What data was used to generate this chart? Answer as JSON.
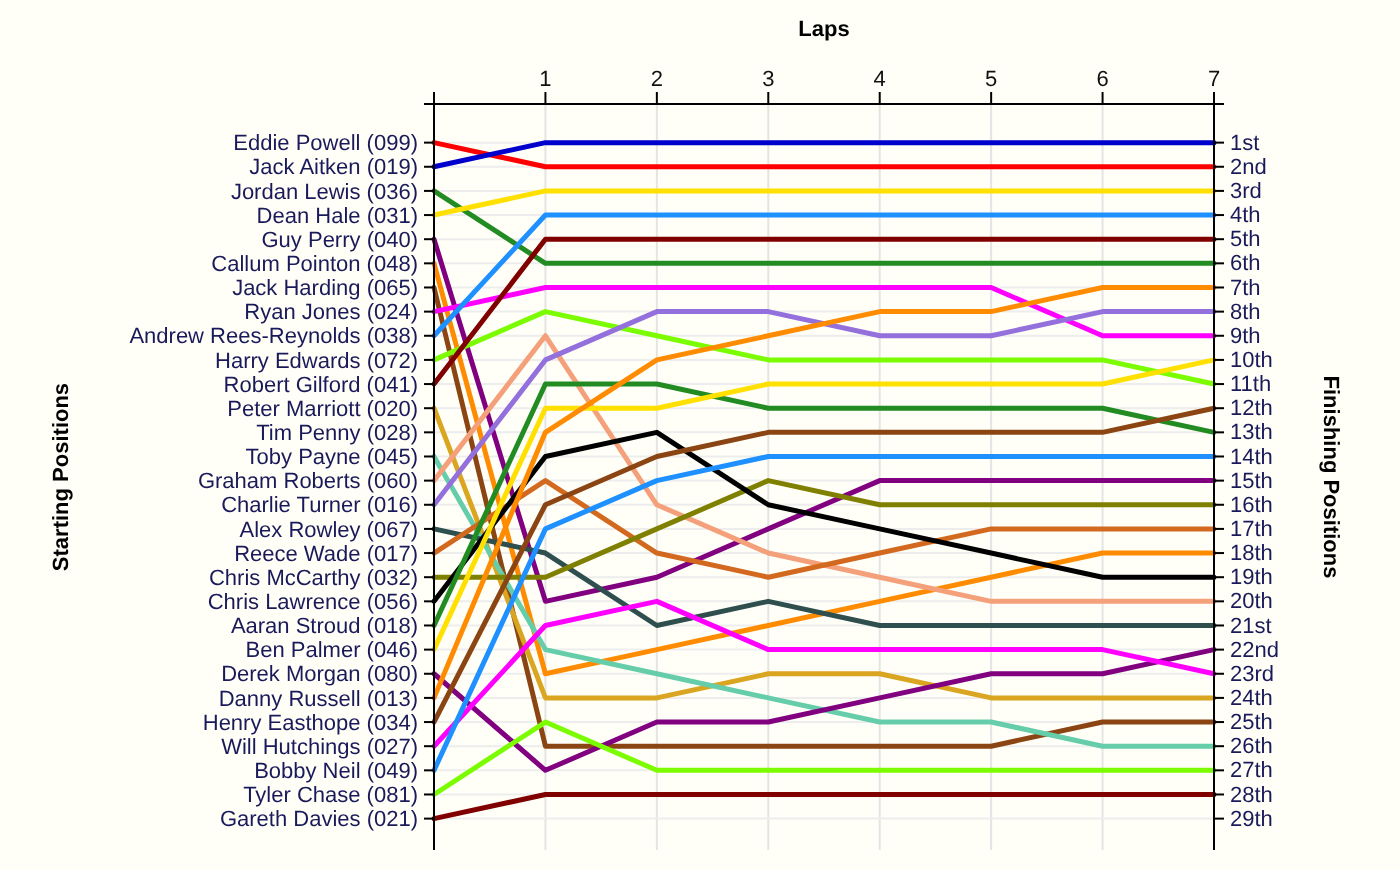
{
  "chart_data": {
    "type": "line",
    "xlabel": "Laps",
    "ylabel": "Finishing Positions",
    "x": [
      0,
      1,
      2,
      3,
      4,
      5,
      6,
      7
    ],
    "xlim": [
      0,
      7
    ],
    "xticks": [
      {
        "value": 0,
        "label": null
      },
      1,
      2,
      3,
      4,
      5,
      6,
      7
    ],
    "annotations": [
      "Eddie Powell (099)",
      "Jack Aitken (019)",
      "Jordan Lewis (036)",
      "Dean Hale (031)",
      "Guy Perry (040)",
      "Callum Pointon (048)",
      "Jack Harding (065)",
      "Ryan Jones (024)",
      "Andrew Rees-Reynolds (038)",
      "Harry Edwards (072)",
      "Robert Gilford (041)",
      "Peter Marriott (020)",
      "Tim Penny (028)",
      "Toby Payne (045)",
      "Graham Roberts (060)",
      "Charlie Turner (016)",
      "Alex Rowley (067)",
      "Reece Wade (017)",
      "Chris McCarthy (032)",
      "Chris Lawrence (056)",
      "Aaran Stroud (018)",
      "Ben Palmer (046)",
      "Derek Morgan (080)",
      "Danny Russell (013)",
      "Henry Easthope (034)",
      "Will Hutchings (027)",
      "Bobby Neil (049)",
      "Tyler Chase (081)",
      "Gareth Davies (021)",
      "Starting Positions"
    ],
    "ylim": [
      30.3,
      -0.6
    ],
    "yticks": [
      {
        "value": 1,
        "label": "1st"
      },
      {
        "value": 2,
        "label": "2nd"
      },
      {
        "value": 3,
        "label": "3rd"
      },
      {
        "value": 4,
        "label": "4th"
      },
      {
        "value": 5,
        "label": "5th"
      },
      {
        "value": 6,
        "label": "6th"
      },
      {
        "value": 7,
        "label": "7th"
      },
      {
        "value": 8,
        "label": "8th"
      },
      {
        "value": 9,
        "label": "9th"
      },
      {
        "value": 10,
        "label": "10th"
      },
      {
        "value": 11,
        "label": "11th"
      },
      {
        "value": 12,
        "label": "12th"
      },
      {
        "value": 13,
        "label": "13th"
      },
      {
        "value": 14,
        "label": "14th"
      },
      {
        "value": 15,
        "label": "15th"
      },
      {
        "value": 16,
        "label": "16th"
      },
      {
        "value": 17,
        "label": "17th"
      },
      {
        "value": 18,
        "label": "18th"
      },
      {
        "value": 19,
        "label": "19th"
      },
      {
        "value": 20,
        "label": "20th"
      },
      {
        "value": 21,
        "label": "21st"
      },
      {
        "value": 22,
        "label": "22nd"
      },
      {
        "value": 23,
        "label": "23rd"
      },
      {
        "value": 24,
        "label": "24th"
      },
      {
        "value": 25,
        "label": "25th"
      },
      {
        "value": 26,
        "label": "26th"
      },
      {
        "value": 27,
        "label": "27th"
      },
      {
        "value": 28,
        "label": "28th"
      },
      {
        "value": 29,
        "label": "29th"
      }
    ],
    "grid": true,
    "line_style": "solid",
    "series": [
      {
        "color": "#ff0000",
        "values": [
          1,
          2,
          2,
          2,
          2,
          2,
          2,
          2
        ]
      },
      {
        "color": "#0000cc",
        "values": [
          2,
          1,
          1,
          1,
          1,
          1,
          1,
          1
        ]
      },
      {
        "color": "#228b22",
        "values": [
          3,
          6,
          6,
          6,
          6,
          6,
          6,
          6
        ]
      },
      {
        "color": "#ffe000",
        "values": [
          4,
          3,
          3,
          3,
          3,
          3,
          3,
          3
        ]
      },
      {
        "color": "#800080",
        "values": [
          5,
          20,
          19,
          17,
          15,
          15,
          15,
          15
        ]
      },
      {
        "color": "#ff8c00",
        "values": [
          6,
          23,
          22,
          21,
          20,
          19,
          18,
          18
        ]
      },
      {
        "color": "#8b4513",
        "values": [
          7,
          26,
          26,
          26,
          26,
          26,
          25,
          25
        ]
      },
      {
        "color": "#ff00ff",
        "values": [
          8,
          7,
          7,
          7,
          7,
          7,
          9,
          9
        ]
      },
      {
        "color": "#1e90ff",
        "values": [
          9,
          4,
          4,
          4,
          4,
          4,
          4,
          4
        ]
      },
      {
        "color": "#7cfc00",
        "values": [
          10,
          8,
          9,
          10,
          10,
          10,
          10,
          11
        ]
      },
      {
        "color": "#800000",
        "values": [
          11,
          5,
          5,
          5,
          5,
          5,
          5,
          5
        ]
      },
      {
        "color": "#daa520",
        "values": [
          12,
          24,
          24,
          23,
          23,
          24,
          24,
          24
        ]
      },
      {
        "color": "#66cdaa",
        "values": [
          14,
          22,
          23,
          24,
          25,
          25,
          26,
          26
        ]
      },
      {
        "color": "#f4a07a",
        "values": [
          15,
          9,
          16,
          18,
          19,
          20,
          20,
          20
        ]
      },
      {
        "color": "#9370db",
        "values": [
          16,
          10,
          8,
          8,
          9,
          9,
          8,
          8
        ]
      },
      {
        "color": "#2f4f4f",
        "values": [
          17,
          18,
          21,
          20,
          21,
          21,
          21,
          21
        ]
      },
      {
        "color": "#d2691e",
        "values": [
          18,
          15,
          18,
          19,
          18,
          17,
          17,
          17
        ]
      },
      {
        "color": "#808000",
        "values": [
          19,
          19,
          17,
          15,
          16,
          16,
          16,
          16
        ]
      },
      {
        "color": "#000000",
        "values": [
          20,
          14,
          13,
          16,
          17,
          18,
          19,
          19
        ]
      },
      {
        "color": "#228b22",
        "values": [
          21,
          11,
          11,
          12,
          12,
          12,
          12,
          13
        ]
      },
      {
        "color": "#ffe000",
        "values": [
          22,
          12,
          12,
          11,
          11,
          11,
          11,
          10
        ]
      },
      {
        "color": "#800080",
        "values": [
          23,
          27,
          25,
          25,
          24,
          23,
          23,
          22
        ]
      },
      {
        "color": "#ff8c00",
        "values": [
          24,
          13,
          10,
          9,
          8,
          8,
          7,
          7
        ]
      },
      {
        "color": "#8b4513",
        "values": [
          25,
          16,
          14,
          13,
          13,
          13,
          13,
          12
        ]
      },
      {
        "color": "#ff00ff",
        "values": [
          26,
          21,
          20,
          22,
          22,
          22,
          22,
          23
        ]
      },
      {
        "color": "#1e90ff",
        "values": [
          27,
          17,
          15,
          14,
          14,
          14,
          14,
          14
        ]
      },
      {
        "color": "#7cfc00",
        "values": [
          28,
          25,
          27,
          27,
          27,
          27,
          27,
          27
        ]
      },
      {
        "color": "#800000",
        "values": [
          29,
          28,
          28,
          28,
          28,
          28,
          28,
          28
        ]
      }
    ]
  }
}
